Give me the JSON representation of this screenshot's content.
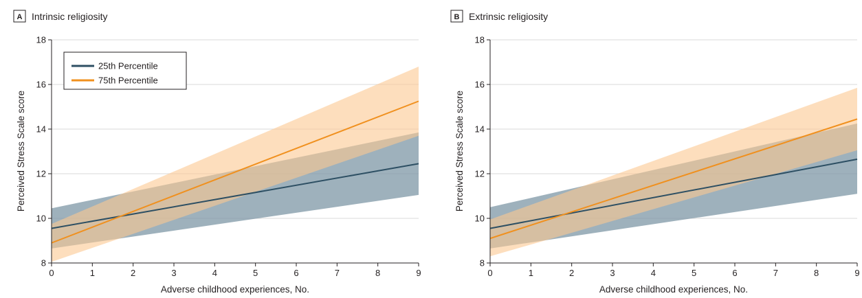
{
  "figure": {
    "colors": {
      "series_25": "#2d4f63",
      "series_75": "#f0901e",
      "band_25": "#7d97a5",
      "band_75": "#fbc891",
      "grid": "#d9d9d9",
      "text": "#231f20"
    }
  },
  "chart_data": [
    {
      "panel_letter": "A",
      "title": "Intrinsic religiosity",
      "type": "line",
      "xlabel": "Adverse childhood experiences, No.",
      "ylabel": "Perceived Stress Scale score",
      "xlim": [
        0,
        9
      ],
      "ylim": [
        8,
        18
      ],
      "xticks": [
        0,
        1,
        2,
        3,
        4,
        5,
        6,
        7,
        8,
        9
      ],
      "yticks": [
        8,
        10,
        12,
        14,
        16,
        18
      ],
      "grid": "horizontal",
      "legend": "top-left",
      "x": [
        0,
        9
      ],
      "series": [
        {
          "name": "25th Percentile",
          "values": [
            9.55,
            12.45
          ],
          "lower": [
            8.65,
            11.05
          ],
          "upper": [
            10.45,
            13.85
          ]
        },
        {
          "name": "75th Percentile",
          "values": [
            8.9,
            15.25
          ],
          "lower": [
            8.05,
            13.7
          ],
          "upper": [
            9.75,
            16.8
          ]
        }
      ]
    },
    {
      "panel_letter": "B",
      "title": "Extrinsic religiosity",
      "type": "line",
      "xlabel": "Adverse childhood experiences, No.",
      "ylabel": "Perceived Stress Scale score",
      "xlim": [
        0,
        9
      ],
      "ylim": [
        8,
        18
      ],
      "xticks": [
        0,
        1,
        2,
        3,
        4,
        5,
        6,
        7,
        8,
        9
      ],
      "yticks": [
        8,
        10,
        12,
        14,
        16,
        18
      ],
      "grid": "horizontal",
      "legend": "none",
      "x": [
        0,
        9
      ],
      "series": [
        {
          "name": "25th Percentile",
          "values": [
            9.55,
            12.65
          ],
          "lower": [
            8.65,
            11.1
          ],
          "upper": [
            10.5,
            14.25
          ]
        },
        {
          "name": "75th Percentile",
          "values": [
            9.1,
            14.45
          ],
          "lower": [
            8.3,
            13.05
          ],
          "upper": [
            9.95,
            15.85
          ]
        }
      ]
    }
  ]
}
